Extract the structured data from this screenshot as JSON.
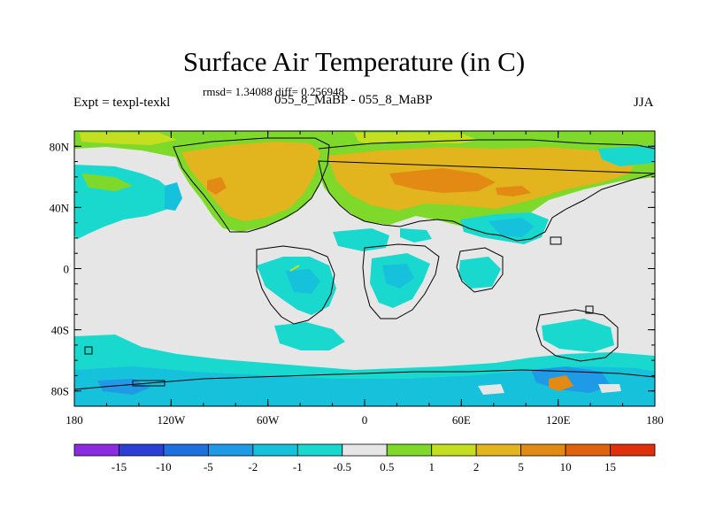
{
  "title": "Surface Air Temperature (in C)",
  "stats_line": "rmsd= 1.34088 diff= 0.256948",
  "left_label": "Expt = texpl-texkl",
  "center_label": "055_8_MaBP - 055_8_MaBP",
  "right_label": "JJA",
  "map": {
    "lon_range": [
      -180,
      180
    ],
    "lat_range": [
      -90,
      90
    ],
    "x_ticks": [
      {
        "value": -180,
        "label": "180"
      },
      {
        "value": -120,
        "label": "120W"
      },
      {
        "value": -60,
        "label": "60W"
      },
      {
        "value": 0,
        "label": "0"
      },
      {
        "value": 60,
        "label": "60E"
      },
      {
        "value": 120,
        "label": "120E"
      },
      {
        "value": 180,
        "label": "180"
      }
    ],
    "y_ticks": [
      {
        "value": 80,
        "label": "80N"
      },
      {
        "value": 40,
        "label": "40N"
      },
      {
        "value": 0,
        "label": "0"
      },
      {
        "value": -40,
        "label": "40S"
      },
      {
        "value": -80,
        "label": "80S"
      }
    ],
    "background_color": "#e6e6e6"
  },
  "colorbar": {
    "colors": [
      "#8a2be2",
      "#2b3fd6",
      "#1e6fe0",
      "#1e9ae6",
      "#16c1dc",
      "#19d9cf",
      "#e6e6e6",
      "#7fd92a",
      "#c4df1f",
      "#e2b41d",
      "#e28a14",
      "#e0620e",
      "#e0300b"
    ],
    "labels": [
      "-15",
      "-10",
      "-5",
      "-2",
      "-1",
      "-0.5",
      "0.5",
      "1",
      "2",
      "5",
      "10",
      "15"
    ]
  }
}
